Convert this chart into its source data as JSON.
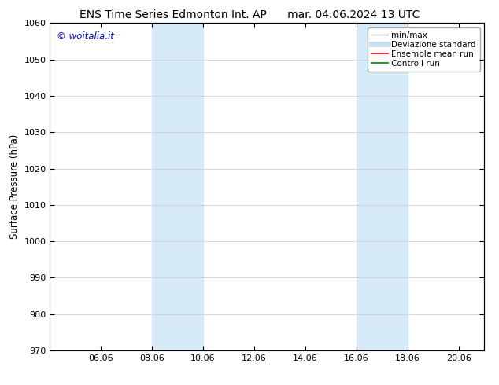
{
  "title_left": "ENS Time Series Edmonton Int. AP",
  "title_right": "mar. 04.06.2024 13 UTC",
  "ylabel": "Surface Pressure (hPa)",
  "ylim": [
    970,
    1060
  ],
  "yticks": [
    970,
    980,
    990,
    1000,
    1010,
    1020,
    1030,
    1040,
    1050,
    1060
  ],
  "xtick_labels": [
    "06.06",
    "08.06",
    "10.06",
    "12.06",
    "14.06",
    "16.06",
    "18.06",
    "20.06"
  ],
  "xtick_positions": [
    2,
    4,
    6,
    8,
    10,
    12,
    14,
    16
  ],
  "xlim": [
    0,
    17
  ],
  "shaded_bands": [
    {
      "x_start": 4,
      "x_end": 6,
      "color": "#d6eaf8"
    },
    {
      "x_start": 12,
      "x_end": 14,
      "color": "#d6eaf8"
    }
  ],
  "watermark_text": "© woitalia.it",
  "watermark_color": "#0000cc",
  "legend_items": [
    {
      "label": "min/max",
      "color": "#999999",
      "lw": 1.0
    },
    {
      "label": "Deviazione standard",
      "color": "#c8dff0",
      "lw": 5
    },
    {
      "label": "Ensemble mean run",
      "color": "red",
      "lw": 1.2
    },
    {
      "label": "Controll run",
      "color": "green",
      "lw": 1.2
    }
  ],
  "bg_color": "#ffffff",
  "title_fontsize": 10,
  "tick_fontsize": 8,
  "ylabel_fontsize": 8.5
}
